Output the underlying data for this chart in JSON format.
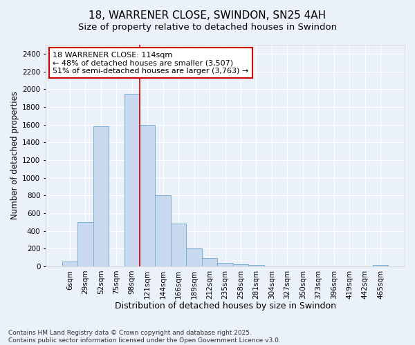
{
  "title": "18, WARRENER CLOSE, SWINDON, SN25 4AH",
  "subtitle": "Size of property relative to detached houses in Swindon",
  "xlabel": "Distribution of detached houses by size in Swindon",
  "ylabel": "Number of detached properties",
  "categories": [
    "6sqm",
    "29sqm",
    "52sqm",
    "75sqm",
    "98sqm",
    "121sqm",
    "144sqm",
    "166sqm",
    "189sqm",
    "212sqm",
    "235sqm",
    "258sqm",
    "281sqm",
    "304sqm",
    "327sqm",
    "350sqm",
    "373sqm",
    "396sqm",
    "419sqm",
    "442sqm",
    "465sqm"
  ],
  "values": [
    50,
    500,
    1580,
    0,
    1950,
    1600,
    800,
    480,
    200,
    95,
    35,
    20,
    15,
    0,
    0,
    0,
    0,
    0,
    0,
    0,
    15
  ],
  "bar_color": "#c8d8ee",
  "bar_edge_color": "#7bafd4",
  "background_color": "#eaf1f8",
  "plot_bg_color": "#eaf1f8",
  "grid_color": "#ffffff",
  "annotation_text": "18 WARRENER CLOSE: 114sqm\n← 48% of detached houses are smaller (3,507)\n51% of semi-detached houses are larger (3,763) →",
  "annotation_box_color": "#ffffff",
  "annotation_box_edge_color": "#cc0000",
  "marker_line_color": "#cc0000",
  "ylim": [
    0,
    2500
  ],
  "yticks": [
    0,
    200,
    400,
    600,
    800,
    1000,
    1200,
    1400,
    1600,
    1800,
    2000,
    2200,
    2400
  ],
  "footer": "Contains HM Land Registry data © Crown copyright and database right 2025.\nContains public sector information licensed under the Open Government Licence v3.0.",
  "title_fontsize": 11,
  "subtitle_fontsize": 9.5,
  "xlabel_fontsize": 9,
  "ylabel_fontsize": 8.5,
  "tick_fontsize": 7.5,
  "annotation_fontsize": 8,
  "footer_fontsize": 6.5,
  "marker_bar_index": 5
}
